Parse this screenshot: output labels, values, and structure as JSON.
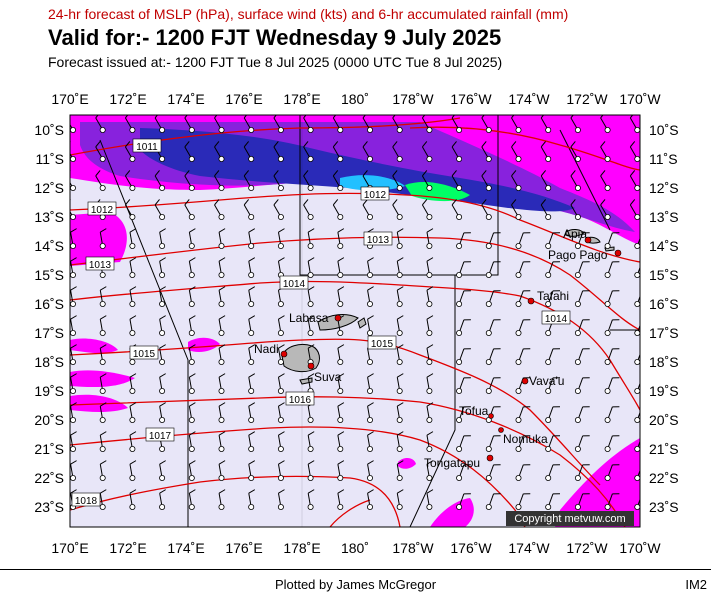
{
  "header": {
    "title_line": "24-hr forecast of MSLP (hPa), surface wind (kts) and 6-hr accumulated rainfall (mm)",
    "valid_line": "Valid for:- 1200 FJT Wednesday 9 July 2025",
    "issued_line": "Forecast issued at:- 1200 FJT Tue 8 Jul 2025 (0000 UTC Tue 8 Jul 2025)"
  },
  "map": {
    "lon_labels": [
      "170˚E",
      "172˚E",
      "174˚E",
      "176˚E",
      "178˚E",
      "180˚",
      "178˚W",
      "176˚W",
      "174˚W",
      "172˚W",
      "170˚W"
    ],
    "lat_labels": [
      "10˚S",
      "11˚S",
      "12˚S",
      "13˚S",
      "14˚S",
      "15˚S",
      "16˚S",
      "17˚S",
      "18˚S",
      "19˚S",
      "20˚S",
      "21˚S",
      "22˚S",
      "23˚S"
    ],
    "isobar_labels": [
      "1011",
      "1012",
      "1012",
      "1013",
      "1013",
      "1014",
      "1014",
      "1015",
      "1015",
      "1016",
      "1017",
      "1018"
    ],
    "places": [
      "Apia",
      "Pago Pago",
      "Tafahi",
      "Labasa",
      "Nadi",
      "Suva",
      "Vava'u",
      "Tofua",
      "Nomuka",
      "Tongatapu"
    ],
    "copyright": "Copyright metvuw.com",
    "colors": {
      "background": "#e8e6f8",
      "isobar": "#e00000",
      "rain_light": "#ff00ff",
      "rain_medium": "#8822dd",
      "rain_heavy": "#2a2ab8",
      "rain_extreme": "#00ff66",
      "land": "#b8b8b8",
      "place_dot": "#dd0000"
    }
  },
  "footer": {
    "credit": "Plotted by James McGregor",
    "code": "IM2"
  }
}
